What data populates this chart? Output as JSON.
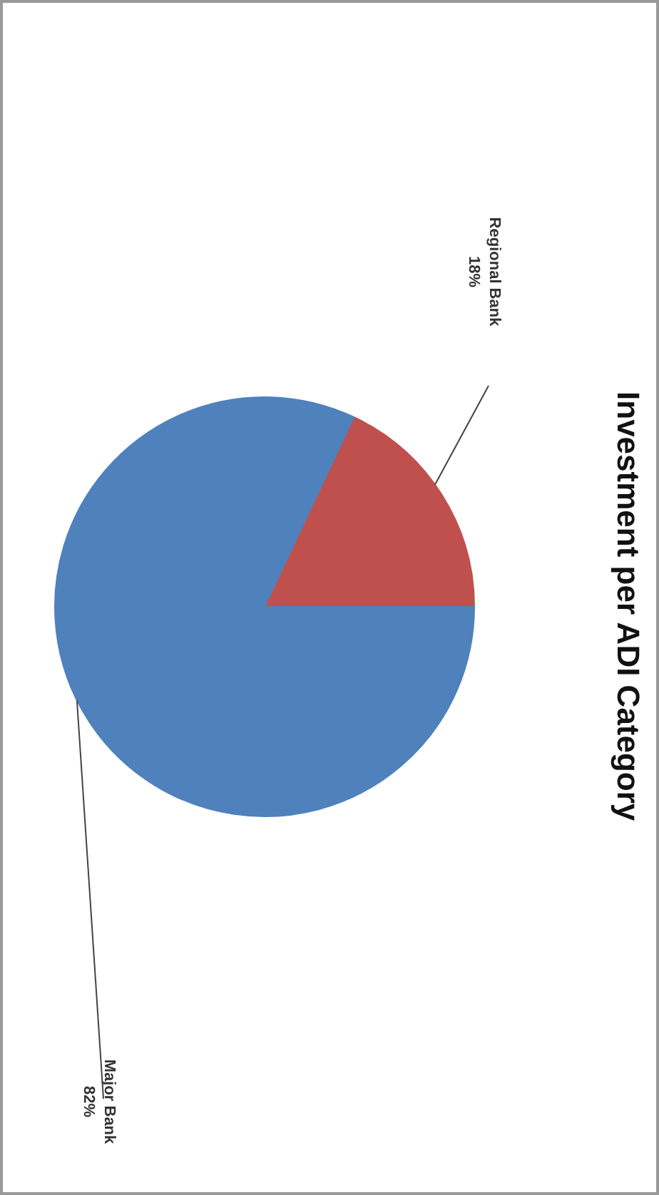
{
  "chart_data": {
    "type": "pie",
    "title": "Investment per ADI Category",
    "categories": [
      "Regional Bank",
      "Major Bank"
    ],
    "values": [
      18,
      82
    ],
    "colors": [
      "#c0504d",
      "#4f81bd"
    ],
    "value_labels": [
      "18%",
      "82%"
    ]
  }
}
